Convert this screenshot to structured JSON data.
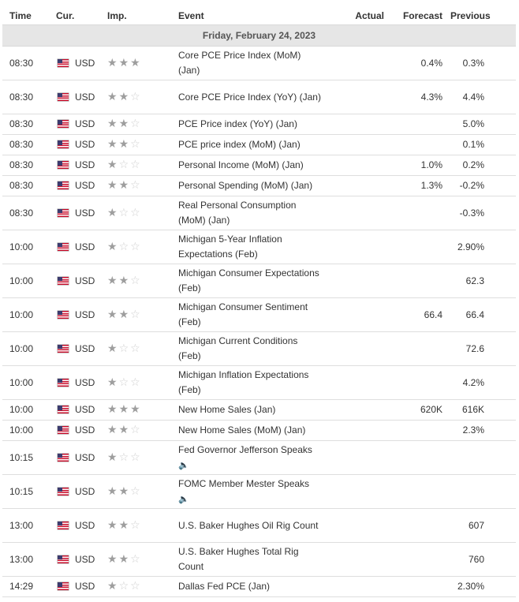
{
  "headers": {
    "time": "Time",
    "currency": "Cur.",
    "importance": "Imp.",
    "event": "Event",
    "actual": "Actual",
    "forecast": "Forecast",
    "previous": "Previous"
  },
  "day_label": "Friday, February 24, 2023",
  "rows": [
    {
      "time": "08:30",
      "cur": "USD",
      "imp": 3,
      "event": "Core PCE Price Index (MoM) (Jan)",
      "actual": "",
      "forecast": "0.4%",
      "previous": "0.3%",
      "lines": 2
    },
    {
      "time": "08:30",
      "cur": "USD",
      "imp": 2,
      "event": "Core PCE Price Index (YoY) (Jan)",
      "actual": "",
      "forecast": "4.3%",
      "previous": "4.4%",
      "lines": 2
    },
    {
      "time": "08:30",
      "cur": "USD",
      "imp": 2,
      "event": "PCE Price index (YoY) (Jan)",
      "actual": "",
      "forecast": "",
      "previous": "5.0%",
      "lines": 1
    },
    {
      "time": "08:30",
      "cur": "USD",
      "imp": 2,
      "event": "PCE price index (MoM) (Jan)",
      "actual": "",
      "forecast": "",
      "previous": "0.1%",
      "lines": 1
    },
    {
      "time": "08:30",
      "cur": "USD",
      "imp": 1,
      "event": "Personal Income (MoM) (Jan)",
      "actual": "",
      "forecast": "1.0%",
      "previous": "0.2%",
      "lines": 1
    },
    {
      "time": "08:30",
      "cur": "USD",
      "imp": 2,
      "event": "Personal Spending (MoM) (Jan)",
      "actual": "",
      "forecast": "1.3%",
      "previous": "-0.2%",
      "lines": 1
    },
    {
      "time": "08:30",
      "cur": "USD",
      "imp": 1,
      "event": "Real Personal Consumption (MoM) (Jan)",
      "actual": "",
      "forecast": "",
      "previous": "-0.3%",
      "lines": 2
    },
    {
      "time": "10:00",
      "cur": "USD",
      "imp": 1,
      "event": "Michigan 5-Year Inflation Expectations (Feb)",
      "actual": "",
      "forecast": "",
      "previous": "2.90%",
      "lines": 2
    },
    {
      "time": "10:00",
      "cur": "USD",
      "imp": 2,
      "event": "Michigan Consumer Expectations (Feb)",
      "actual": "",
      "forecast": "",
      "previous": "62.3",
      "lines": 2
    },
    {
      "time": "10:00",
      "cur": "USD",
      "imp": 2,
      "event": "Michigan Consumer Sentiment (Feb)",
      "actual": "",
      "forecast": "66.4",
      "previous": "66.4",
      "lines": 2
    },
    {
      "time": "10:00",
      "cur": "USD",
      "imp": 1,
      "event": "Michigan Current Conditions (Feb)",
      "actual": "",
      "forecast": "",
      "previous": "72.6",
      "lines": 2
    },
    {
      "time": "10:00",
      "cur": "USD",
      "imp": 1,
      "event": "Michigan Inflation Expectations (Feb)",
      "actual": "",
      "forecast": "",
      "previous": "4.2%",
      "lines": 2
    },
    {
      "time": "10:00",
      "cur": "USD",
      "imp": 3,
      "event": "New Home Sales (Jan)",
      "actual": "",
      "forecast": "620K",
      "previous": "616K",
      "lines": 1
    },
    {
      "time": "10:00",
      "cur": "USD",
      "imp": 2,
      "event": "New Home Sales (MoM) (Jan)",
      "actual": "",
      "forecast": "",
      "previous": "2.3%",
      "lines": 1
    },
    {
      "time": "10:15",
      "cur": "USD",
      "imp": 1,
      "event": "Fed Governor Jefferson Speaks",
      "actual": "",
      "forecast": "",
      "previous": "",
      "lines": 2,
      "speech": true
    },
    {
      "time": "10:15",
      "cur": "USD",
      "imp": 2,
      "event": "FOMC Member Mester Speaks",
      "actual": "",
      "forecast": "",
      "previous": "",
      "lines": 2,
      "speech": true
    },
    {
      "time": "13:00",
      "cur": "USD",
      "imp": 2,
      "event": "U.S. Baker Hughes Oil Rig Count",
      "actual": "",
      "forecast": "",
      "previous": "607",
      "lines": 2
    },
    {
      "time": "13:00",
      "cur": "USD",
      "imp": 2,
      "event": "U.S. Baker Hughes Total Rig Count",
      "actual": "",
      "forecast": "",
      "previous": "760",
      "lines": 2
    },
    {
      "time": "14:29",
      "cur": "USD",
      "imp": 1,
      "event": "Dallas Fed PCE (Jan)",
      "actual": "",
      "forecast": "",
      "previous": "2.30%",
      "lines": 1
    }
  ],
  "icons": {
    "flag": "us-flag-icon",
    "star": "star-icon",
    "speech": "speaker-icon"
  },
  "colors": {
    "day_bg": "#e6e6e6",
    "star_on": "#9e9e9e",
    "star_off": "#cfcfcf",
    "border": "#dedede"
  }
}
